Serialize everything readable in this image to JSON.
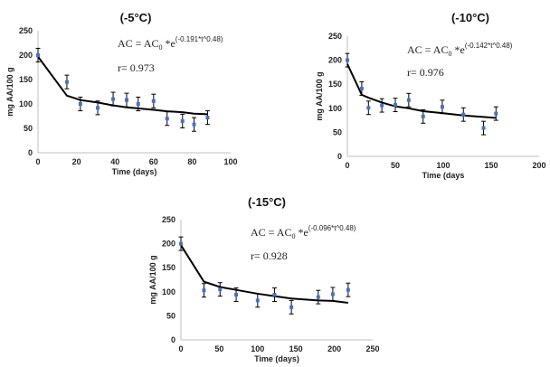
{
  "colors": {
    "marker": "#4472C4",
    "fit_line": "#000000",
    "error_bar": "#000000",
    "axis": "#bfbfbf"
  },
  "chart_data": [
    {
      "type": "scatter",
      "title": "(-5°C)",
      "xlabel": "Time  (days)",
      "ylabel": "mg AA/100 g",
      "xlim": [
        0,
        100
      ],
      "ylim": [
        0,
        250
      ],
      "xticks": [
        0,
        20,
        40,
        60,
        80,
        100
      ],
      "yticks": [
        0,
        50,
        100,
        150,
        200,
        250
      ],
      "equation": {
        "lhs": "AC = AC",
        "sub": "0",
        "mid": " *e",
        "exponent": "(-0.191*t^0.48)"
      },
      "r_label": "r= 0.973",
      "x": [
        0,
        15,
        22,
        31,
        39,
        46,
        52,
        60,
        67,
        75,
        81,
        88
      ],
      "y": [
        200,
        145,
        100,
        92,
        110,
        108,
        100,
        106,
        70,
        65,
        58,
        72
      ],
      "error": 14,
      "fit": [
        197,
        117,
        108,
        103,
        97,
        93,
        91,
        88,
        85,
        83,
        80,
        79
      ]
    },
    {
      "type": "scatter",
      "title": "(-10°C)",
      "xlabel": "Time  (days",
      "ylabel": "mg AA/100 g",
      "xlim": [
        0,
        200
      ],
      "ylim": [
        0,
        250
      ],
      "xticks": [
        0,
        50,
        100,
        150,
        200
      ],
      "yticks": [
        0,
        50,
        100,
        150,
        200,
        250
      ],
      "equation": {
        "lhs": "AC = AC",
        "sub": "0",
        "mid": " *e",
        "exponent": "(-0.142*t^0.48)"
      },
      "r_label": "r= 0.976",
      "x": [
        0,
        15,
        22,
        36,
        50,
        64,
        79,
        99,
        121,
        142,
        155
      ],
      "y": [
        200,
        141,
        101,
        106,
        107,
        117,
        83,
        103,
        87,
        59,
        89
      ],
      "error": 14,
      "fit": [
        192,
        128,
        122,
        112,
        104,
        100,
        94,
        90,
        85,
        82,
        80
      ]
    },
    {
      "type": "scatter",
      "title": "(-15°C)",
      "xlabel": "Time  (days)",
      "ylabel": "mg AA/100 g",
      "xlim": [
        0,
        250
      ],
      "ylim": [
        0,
        250
      ],
      "xticks": [
        0,
        50,
        100,
        150,
        200,
        250
      ],
      "yticks": [
        0,
        50,
        100,
        150,
        200,
        250
      ],
      "equation": {
        "lhs": "AC = AC",
        "sub": "0",
        "mid": " *e",
        "exponent": "(-0.096*t^0.48)"
      },
      "r_label": "r= 0.928",
      "x": [
        0,
        30,
        51,
        72,
        100,
        122,
        144,
        179,
        198,
        218
      ],
      "y": [
        200,
        103,
        105,
        94,
        82,
        94,
        68,
        89,
        95,
        104
      ],
      "error": 14,
      "fit": [
        197,
        121,
        110,
        104,
        96,
        91,
        86,
        82,
        81,
        77
      ]
    }
  ]
}
